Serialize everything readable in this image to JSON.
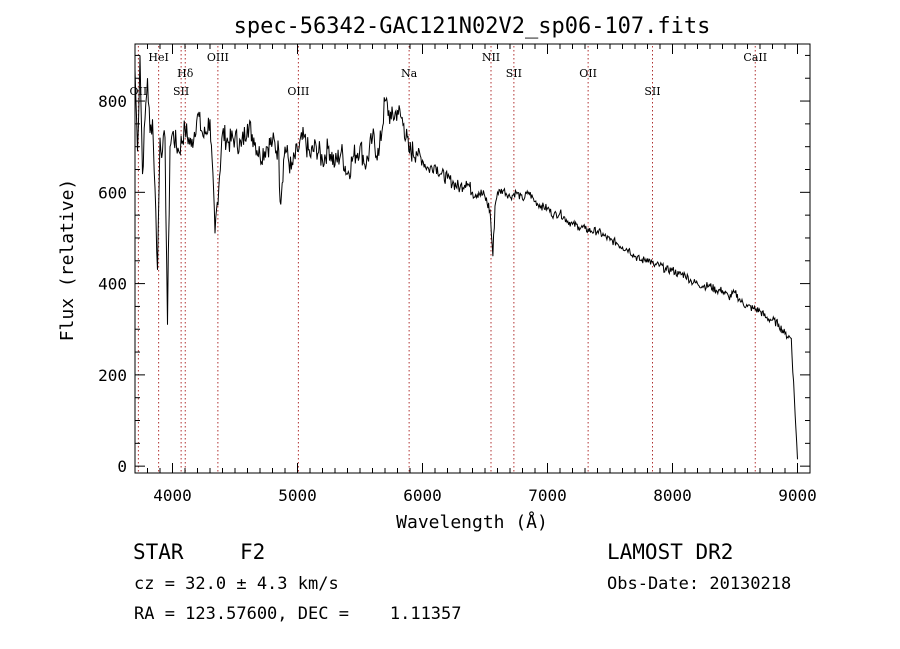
{
  "chart_data": {
    "type": "line",
    "title": "spec-56342-GAC121N02V2_sp06-107.fits",
    "xlabel": "Wavelength (Å)",
    "ylabel": "Flux (relative)",
    "xlim": [
      3700,
      9100
    ],
    "ylim": [
      -15,
      925
    ],
    "x_ticks": [
      4000,
      5000,
      6000,
      7000,
      8000,
      9000
    ],
    "x_tick_labels": [
      "4000",
      "5000",
      "6000",
      "7000",
      "8000",
      "9000"
    ],
    "y_ticks": [
      0,
      200,
      400,
      600,
      800
    ],
    "y_tick_labels": [
      "0",
      "200",
      "400",
      "600",
      "800"
    ],
    "grid": false,
    "line_color": "#000000",
    "marker_color": "#b03030",
    "series": [
      {
        "x": [
          3700,
          3720,
          3740,
          3760,
          3780,
          3800,
          3820,
          3840,
          3860,
          3880,
          3900,
          3920,
          3940,
          3960,
          3980,
          4000,
          4050,
          4100,
          4150,
          4200,
          4250,
          4300,
          4340,
          4400,
          4450,
          4500,
          4550,
          4600,
          4650,
          4700,
          4750,
          4800,
          4850,
          4861,
          4900,
          4950,
          5000,
          5050,
          5100,
          5150,
          5200,
          5250,
          5300,
          5350,
          5400,
          5450,
          5500,
          5550,
          5600,
          5650,
          5700,
          5750,
          5800,
          5850,
          5890,
          5950,
          6000,
          6050,
          6100,
          6150,
          6200,
          6250,
          6300,
          6350,
          6400,
          6450,
          6500,
          6540,
          6563,
          6580,
          6600,
          6650,
          6700,
          6750,
          6800,
          6850,
          6900,
          6950,
          7000,
          7050,
          7100,
          7150,
          7200,
          7250,
          7300,
          7350,
          7400,
          7450,
          7500,
          7550,
          7600,
          7650,
          7700,
          7750,
          7800,
          7850,
          7900,
          7950,
          8000,
          8050,
          8100,
          8150,
          8200,
          8250,
          8300,
          8350,
          8400,
          8450,
          8500,
          8550,
          8600,
          8650,
          8700,
          8750,
          8800,
          8850,
          8900,
          8950,
          9000
        ],
        "y": [
          870,
          690,
          900,
          640,
          760,
          850,
          730,
          760,
          610,
          430,
          720,
          690,
          720,
          310,
          700,
          730,
          690,
          740,
          700,
          770,
          720,
          760,
          510,
          730,
          710,
          720,
          700,
          750,
          720,
          680,
          700,
          710,
          690,
          580,
          700,
          650,
          690,
          720,
          680,
          700,
          670,
          700,
          660,
          690,
          640,
          680,
          700,
          660,
          720,
          680,
          800,
          760,
          780,
          750,
          690,
          690,
          670,
          650,
          660,
          640,
          630,
          620,
          610,
          625,
          600,
          600,
          590,
          560,
          460,
          570,
          600,
          605,
          590,
          600,
          585,
          600,
          580,
          570,
          565,
          550,
          555,
          540,
          530,
          525,
          520,
          515,
          515,
          505,
          495,
          490,
          480,
          475,
          460,
          450,
          455,
          440,
          440,
          430,
          430,
          420,
          420,
          405,
          400,
          395,
          395,
          385,
          385,
          370,
          380,
          360,
          350,
          345,
          340,
          325,
          320,
          310,
          290,
          280,
          15
        ]
      }
    ],
    "line_markers": [
      {
        "label": "OII",
        "x": 3727,
        "row": 3
      },
      {
        "label": "HeI",
        "x": 3889,
        "row": 1
      },
      {
        "label": "Hδ",
        "x": 4102,
        "row": 2
      },
      {
        "label": "SII",
        "x": 4069,
        "row": 3
      },
      {
        "label": "OIII",
        "x": 4363,
        "row": 1
      },
      {
        "label": "OIII",
        "x": 5007,
        "row": 3
      },
      {
        "label": "Na",
        "x": 5893,
        "row": 2
      },
      {
        "label": "NII",
        "x": 6548,
        "row": 1
      },
      {
        "label": "SII",
        "x": 6731,
        "row": 2
      },
      {
        "label": "OII",
        "x": 7325,
        "row": 2
      },
      {
        "label": "SII",
        "x": 7840,
        "row": 3
      },
      {
        "label": "CaII",
        "x": 8662,
        "row": 1
      }
    ]
  },
  "info": {
    "object_type": "STAR",
    "subclass": "F2",
    "survey": "LAMOST DR2",
    "redshift": "cz = 32.0 ± 4.3 km/s",
    "obs_date": "Obs-Date: 20130218",
    "coords": "RA = 123.57600, DEC =    1.11357"
  }
}
